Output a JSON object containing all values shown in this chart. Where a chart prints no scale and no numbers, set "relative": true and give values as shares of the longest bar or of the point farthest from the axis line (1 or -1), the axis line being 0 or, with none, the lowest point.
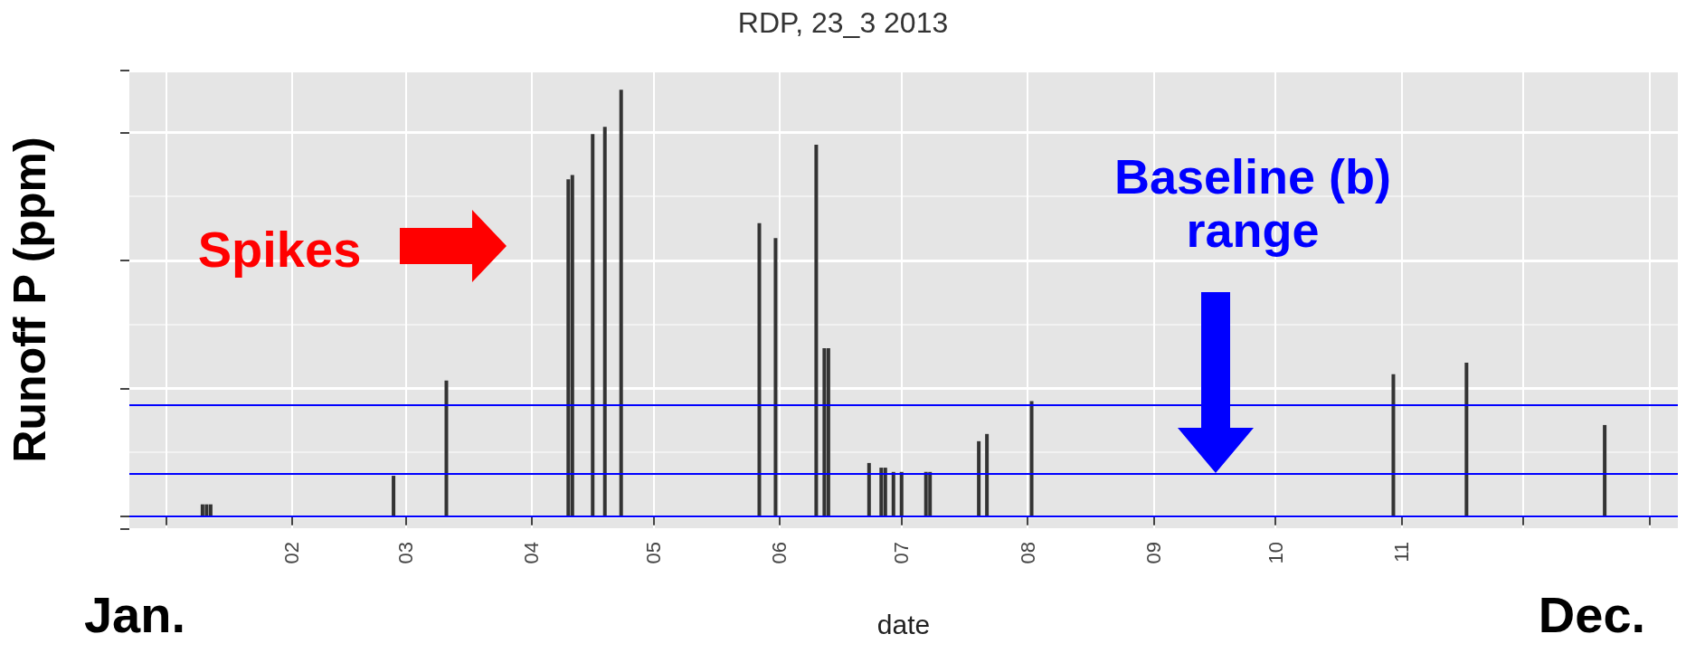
{
  "chart_data": {
    "type": "bar",
    "title": "RDP, 23_3 2013",
    "xlabel": "date",
    "ylabel": "Runoff P (ppm)",
    "relative": true,
    "grid": true,
    "color": "#333333",
    "x": [
      "2013-01-10",
      "2013-01-11",
      "2013-01-12",
      "2013-02-26",
      "2013-03-11",
      "2013-04-10",
      "2013-04-11",
      "2013-04-16",
      "2013-04-19",
      "2013-04-23",
      "2013-05-27",
      "2013-05-31",
      "2013-06-10",
      "2013-06-12",
      "2013-06-13",
      "2013-06-23",
      "2013-06-26",
      "2013-06-27",
      "2013-06-29",
      "2013-07-01",
      "2013-07-07",
      "2013-07-08",
      "2013-07-20",
      "2013-07-22",
      "2013-08-02",
      "2013-10-30",
      "2013-11-17",
      "2013-12-21"
    ],
    "values": [
      0.028,
      0.028,
      0.028,
      0.095,
      0.318,
      0.79,
      0.8,
      0.896,
      0.913,
      1.0,
      0.687,
      0.652,
      0.871,
      0.394,
      0.394,
      0.125,
      0.114,
      0.114,
      0.104,
      0.104,
      0.104,
      0.104,
      0.176,
      0.193,
      0.27,
      0.333,
      0.36,
      0.214
    ],
    "xlim": [
      "2012-12-23",
      "2014-01-08"
    ],
    "xticks": [
      {
        "value": "2013-01-01",
        "label": null
      },
      {
        "value": "2013-02-01",
        "label": "02"
      },
      {
        "value": "2013-03-01",
        "label": "03"
      },
      {
        "value": "2013-04-01",
        "label": "04"
      },
      {
        "value": "2013-05-01",
        "label": "05"
      },
      {
        "value": "2013-06-01",
        "label": "06"
      },
      {
        "value": "2013-07-01",
        "label": "07"
      },
      {
        "value": "2013-08-01",
        "label": "08"
      },
      {
        "value": "2013-09-01",
        "label": "09"
      },
      {
        "value": "2013-10-01",
        "label": "10"
      },
      {
        "value": "2013-11-01",
        "label": "11"
      },
      {
        "value": "2013-12-01",
        "label": null
      },
      {
        "value": "2014-01-01",
        "label": null
      }
    ],
    "ref_lines": [
      {
        "axis": "y",
        "value": 0,
        "color": "#0000ff"
      },
      {
        "axis": "y",
        "value": 0.1,
        "color": "#0000ff"
      },
      {
        "axis": "y",
        "value": 0.263,
        "color": "#0000ff"
      }
    ],
    "annotations": [
      "Spikes",
      "Baseline (b)\nrange",
      "Jan.",
      "Dec."
    ]
  }
}
